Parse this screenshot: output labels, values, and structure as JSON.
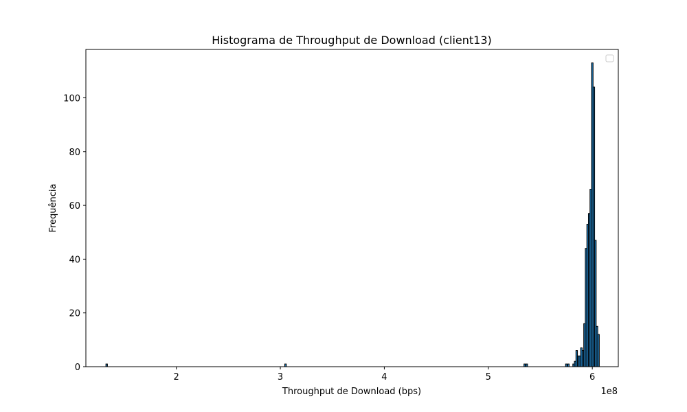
{
  "chart_data": {
    "type": "bar",
    "title": "Histograma de Throughput de Download (client13)",
    "xlabel": "Throughput de Download (bps)",
    "ylabel": "Frequência",
    "x_offset_label": "1e8",
    "xlim": [
      113000000.0,
      625000000.0
    ],
    "ylim": [
      0,
      118
    ],
    "x_ticks": [
      200000000.0,
      300000000.0,
      400000000.0,
      500000000.0,
      600000000.0
    ],
    "x_tick_labels": [
      "2",
      "3",
      "4",
      "5",
      "6"
    ],
    "y_ticks": [
      0,
      20,
      40,
      60,
      80,
      100
    ],
    "y_tick_labels": [
      "0",
      "20",
      "40",
      "60",
      "80",
      "100"
    ],
    "legend": "top-right (empty)",
    "grid": false,
    "bar_width": 1500000.0,
    "bar_color": "#1f77b4",
    "edge_color": "#000000",
    "bins": [
      {
        "x": 133000000.0,
        "count": 1
      },
      {
        "x": 305000000.0,
        "count": 1
      },
      {
        "x": 535000000.0,
        "count": 1
      },
      {
        "x": 537000000.0,
        "count": 1
      },
      {
        "x": 575000000.0,
        "count": 1
      },
      {
        "x": 577000000.0,
        "count": 1
      },
      {
        "x": 582000000.0,
        "count": 1
      },
      {
        "x": 583500000.0,
        "count": 2
      },
      {
        "x": 585000000.0,
        "count": 6
      },
      {
        "x": 586500000.0,
        "count": 4
      },
      {
        "x": 588000000.0,
        "count": 4
      },
      {
        "x": 589500000.0,
        "count": 7
      },
      {
        "x": 591000000.0,
        "count": 6
      },
      {
        "x": 592500000.0,
        "count": 16
      },
      {
        "x": 594000000.0,
        "count": 44
      },
      {
        "x": 595500000.0,
        "count": 53
      },
      {
        "x": 597000000.0,
        "count": 57
      },
      {
        "x": 598500000.0,
        "count": 66
      },
      {
        "x": 600000000.0,
        "count": 113
      },
      {
        "x": 601500000.0,
        "count": 104
      },
      {
        "x": 603000000.0,
        "count": 47
      },
      {
        "x": 604500000.0,
        "count": 15
      },
      {
        "x": 606000000.0,
        "count": 12
      }
    ]
  }
}
